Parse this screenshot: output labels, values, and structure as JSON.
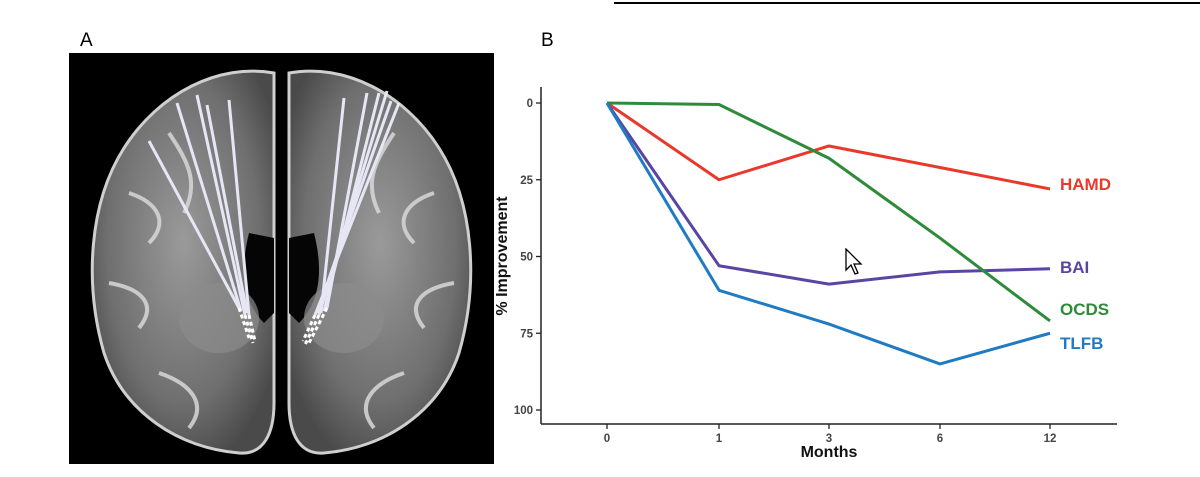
{
  "panels": {
    "a_label": "A",
    "b_label": "B"
  },
  "chart_data": {
    "type": "line",
    "title": "",
    "xlabel": "Months",
    "ylabel": "% Improvement",
    "categories": [
      "0",
      "1",
      "3",
      "6",
      "12"
    ],
    "yticks": [
      0,
      25,
      50,
      75,
      100
    ],
    "ylim": [
      0,
      100
    ],
    "y_inverted": true,
    "grid": false,
    "legend": "inline-right",
    "series": [
      {
        "name": "HAMD",
        "color": "#e8392a",
        "values": [
          0,
          25,
          14,
          21,
          28
        ]
      },
      {
        "name": "BAI",
        "color": "#5b45a3",
        "values": [
          0,
          53,
          59,
          55,
          54
        ]
      },
      {
        "name": "OCDS",
        "color": "#2e8b3a",
        "values": [
          0,
          0.5,
          18,
          44,
          71
        ]
      },
      {
        "name": "TLFB",
        "color": "#1f7bc2",
        "values": [
          0,
          61,
          72,
          85,
          75
        ]
      }
    ]
  }
}
